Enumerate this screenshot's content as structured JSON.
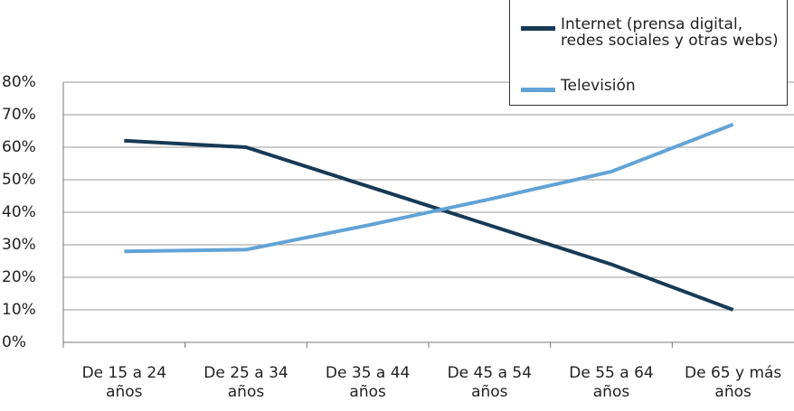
{
  "chart_data": {
    "type": "line",
    "categories": [
      "De 15 a 24 años",
      "De 25 a 34 años",
      "De 35 a 44 años",
      "De 45 a 54 años",
      "De 55 a 64 años",
      "De 65 y más años"
    ],
    "series": [
      {
        "name": "Internet (prensa digital, redes sociales y otras webs)",
        "color": "#173a55",
        "values": [
          62,
          60,
          48,
          36,
          24,
          10
        ]
      },
      {
        "name": "Televisión",
        "color": "#62a3d6",
        "values": [
          28,
          28.5,
          36,
          44,
          52.5,
          67
        ]
      }
    ],
    "ylim": [
      0,
      80
    ],
    "yticks": [
      {
        "value": 0,
        "label": "0%"
      },
      {
        "value": 10,
        "label": "10%"
      },
      {
        "value": 20,
        "label": "20%"
      },
      {
        "value": 30,
        "label": "30%"
      },
      {
        "value": 40,
        "label": "40%"
      },
      {
        "value": 50,
        "label": "50%"
      },
      {
        "value": 60,
        "label": "60%"
      },
      {
        "value": 70,
        "label": "70%"
      },
      {
        "value": 80,
        "label": "80%"
      }
    ],
    "grid": true,
    "legend": "top-right"
  }
}
